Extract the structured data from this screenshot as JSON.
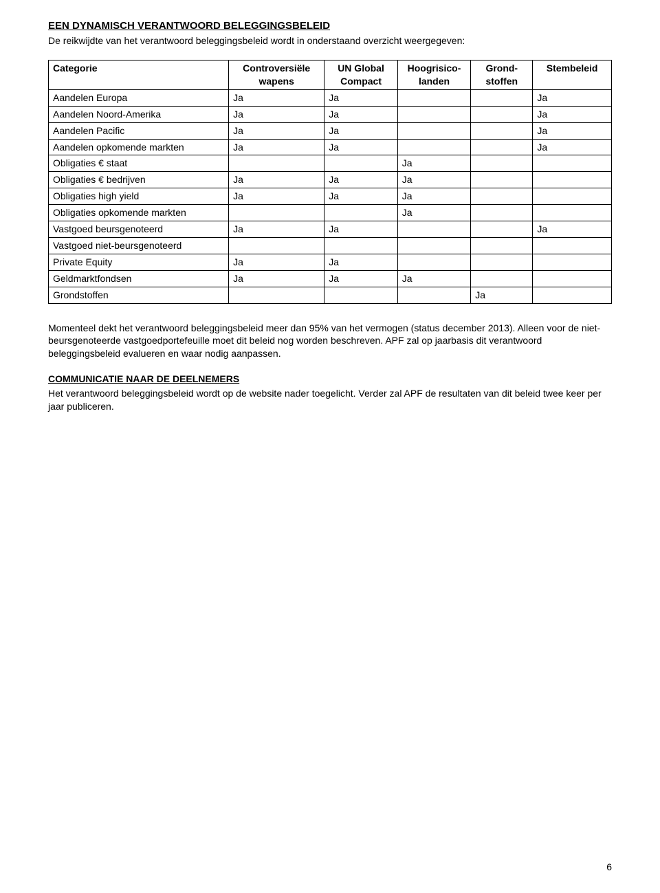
{
  "headings": {
    "policy_title": "EEN DYNAMISCH VERANTWOORD BELEGGINGSBELEID",
    "comm_title": "COMMUNICATIE NAAR DE DEELNEMERS"
  },
  "paragraphs": {
    "intro": "De reikwijdte van het verantwoord beleggingsbeleid wordt in onderstaand overzicht weergegeven:",
    "coverage": "Momenteel dekt het verantwoord beleggingsbeleid meer dan 95% van het vermogen (status december 2013). Alleen voor de niet-beursgenoteerde vastgoedportefeuille moet dit beleid nog worden beschreven. APF zal op jaarbasis dit verantwoord beleggingsbeleid evalueren en waar nodig aanpassen.",
    "communication": "Het verantwoord beleggingsbeleid wordt op de website nader toegelicht. Verder zal APF de resultaten van dit beleid twee keer per jaar publiceren."
  },
  "table": {
    "columns": [
      {
        "line1": "Categorie",
        "line2": ""
      },
      {
        "line1": "Controversiële",
        "line2": "wapens"
      },
      {
        "line1": "UN Global",
        "line2": "Compact"
      },
      {
        "line1": "Hoogrisico-",
        "line2": "landen"
      },
      {
        "line1": "Grond-",
        "line2": "stoffen"
      },
      {
        "line1": "Stembeleid",
        "line2": ""
      }
    ],
    "rows": [
      {
        "cat": "Aandelen Europa",
        "c1": "Ja",
        "c2": "Ja",
        "c3": "",
        "c4": "",
        "c5": "Ja"
      },
      {
        "cat": "Aandelen Noord-Amerika",
        "c1": "Ja",
        "c2": "Ja",
        "c3": "",
        "c4": "",
        "c5": "Ja"
      },
      {
        "cat": "Aandelen Pacific",
        "c1": "Ja",
        "c2": "Ja",
        "c3": "",
        "c4": "",
        "c5": "Ja"
      },
      {
        "cat": "Aandelen opkomende markten",
        "c1": "Ja",
        "c2": "Ja",
        "c3": "",
        "c4": "",
        "c5": "Ja"
      },
      {
        "cat": "Obligaties € staat",
        "c1": "",
        "c2": "",
        "c3": "Ja",
        "c4": "",
        "c5": ""
      },
      {
        "cat": "Obligaties € bedrijven",
        "c1": "Ja",
        "c2": "Ja",
        "c3": "Ja",
        "c4": "",
        "c5": ""
      },
      {
        "cat": "Obligaties high yield",
        "c1": "Ja",
        "c2": "Ja",
        "c3": "Ja",
        "c4": "",
        "c5": ""
      },
      {
        "cat": "Obligaties opkomende markten",
        "c1": "",
        "c2": "",
        "c3": "Ja",
        "c4": "",
        "c5": ""
      },
      {
        "cat": "Vastgoed beursgenoteerd",
        "c1": "Ja",
        "c2": "Ja",
        "c3": "",
        "c4": "",
        "c5": "Ja"
      },
      {
        "cat": "Vastgoed niet-beursgenoteerd",
        "c1": "",
        "c2": "",
        "c3": "",
        "c4": "",
        "c5": ""
      },
      {
        "cat": "Private Equity",
        "c1": "Ja",
        "c2": "Ja",
        "c3": "",
        "c4": "",
        "c5": ""
      },
      {
        "cat": "Geldmarktfondsen",
        "c1": "Ja",
        "c2": "Ja",
        "c3": "Ja",
        "c4": "",
        "c5": ""
      },
      {
        "cat": "Grondstoffen",
        "c1": "",
        "c2": "",
        "c3": "",
        "c4": "Ja",
        "c5": ""
      }
    ]
  },
  "page_number": "6",
  "colors": {
    "text": "#000000",
    "background": "#ffffff",
    "border": "#000000"
  }
}
